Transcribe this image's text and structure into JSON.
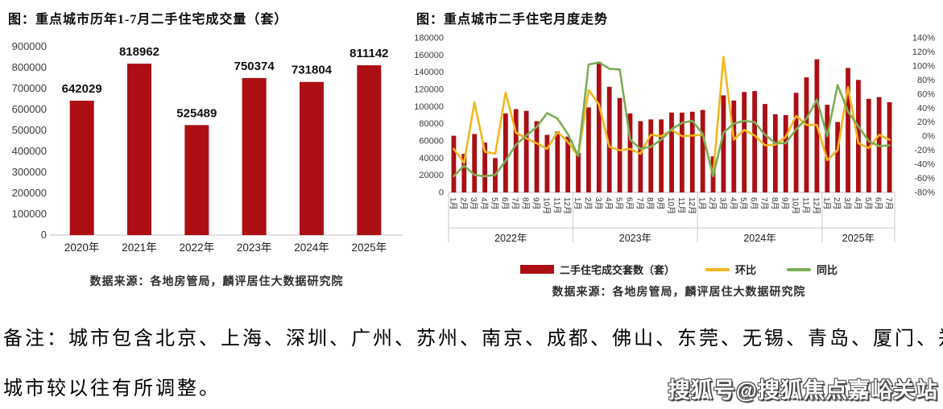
{
  "colors": {
    "bar_red": "#AB0F14",
    "line_yellow": "#F2B61E",
    "line_green": "#7BAE54",
    "axis_text": "#3a3a3a",
    "axis_line": "#c2c2c2",
    "separator": "#c9c9c9"
  },
  "chart_data": [
    {
      "id": "annual_bar",
      "type": "bar",
      "title": "图：重点城市历年1-7月二手住宅成交量（套）",
      "categories": [
        "2020年",
        "2021年",
        "2022年",
        "2023年",
        "2024年",
        "2025年"
      ],
      "values": [
        642029,
        818962,
        525489,
        750374,
        731804,
        811142
      ],
      "data_labels": [
        "642029",
        "818962",
        "525489",
        "750374",
        "731804",
        "811142"
      ],
      "ylim": [
        0,
        900000
      ],
      "ytick_step": 100000,
      "grid": false,
      "legend_position": "none",
      "source": "数据来源：各地房管局，麟评居住大数据研究院"
    },
    {
      "id": "monthly_combo",
      "type": "combo-bar-line",
      "title": "图：重点城市二手住宅月度走势",
      "year_groups": [
        {
          "label": "2022年",
          "months": 12
        },
        {
          "label": "2023年",
          "months": 12
        },
        {
          "label": "2024年",
          "months": 12
        },
        {
          "label": "2025年",
          "months": 7
        }
      ],
      "categories": [
        "1月",
        "2月",
        "3月",
        "4月",
        "5月",
        "6月",
        "7月",
        "8月",
        "9月",
        "10月",
        "11月",
        "12月",
        "1月",
        "2月",
        "3月",
        "4月",
        "5月",
        "6月",
        "7月",
        "8月",
        "9月",
        "10月",
        "11月",
        "12月",
        "1月",
        "2月",
        "3月",
        "4月",
        "5月",
        "6月",
        "7月",
        "8月",
        "9月",
        "10月",
        "11月",
        "12月",
        "1月",
        "2月",
        "3月",
        "4月",
        "5月",
        "6月",
        "7月"
      ],
      "series": [
        {
          "name": "二手住宅成交套数（套）",
          "type": "bar",
          "axis": "left",
          "values": [
            66000,
            45000,
            68000,
            58000,
            40000,
            92000,
            97000,
            95000,
            83000,
            67000,
            71000,
            65000,
            46000,
            99000,
            152000,
            123000,
            110000,
            92000,
            83000,
            85000,
            85000,
            93000,
            93000,
            94000,
            96000,
            42000,
            113000,
            107000,
            117000,
            118000,
            103000,
            91000,
            90000,
            116000,
            134000,
            155000,
            102000,
            82000,
            145000,
            131000,
            109000,
            111000,
            105000
          ]
        },
        {
          "name": "环比",
          "type": "line",
          "axis": "right",
          "values": [
            -18,
            -38,
            48,
            -22,
            -25,
            62,
            5,
            -3,
            -10,
            -18,
            6,
            -8,
            -28,
            66,
            45,
            -15,
            -20,
            -18,
            -25,
            2,
            0,
            9,
            0,
            1,
            2,
            -56,
            113,
            -5,
            9,
            1,
            -13,
            -12,
            -1,
            29,
            16,
            16,
            -34,
            -20,
            70,
            -10,
            -17,
            2,
            -5
          ]
        },
        {
          "name": "同比",
          "type": "line",
          "axis": "right",
          "values": [
            -57,
            -42,
            -55,
            -57,
            -55,
            -35,
            -12,
            1,
            13,
            33,
            25,
            3,
            -28,
            102,
            105,
            96,
            95,
            -5,
            -18,
            -15,
            -5,
            10,
            19,
            22,
            3,
            -57,
            5,
            18,
            22,
            20,
            2,
            -10,
            -10,
            10,
            25,
            52,
            0,
            73,
            35,
            14,
            -7,
            -14,
            -13
          ]
        }
      ],
      "left_axis": {
        "min": 0,
        "max": 180000,
        "step": 20000
      },
      "right_axis": {
        "min": -80,
        "max": 140,
        "step": 20,
        "suffix": "%"
      },
      "grid": false,
      "legend_position": "bottom",
      "source": "数据来源：各地房管局，麟评居住大数据研究院"
    }
  ],
  "note": {
    "line1": "备注：城市包含北京、上海、深圳、广州、苏州、南京、成都、佛山、东莞、无锡、青岛、厦门、郑州，",
    "line2": "城市较以往有所调整。"
  },
  "watermark": "搜狐号@搜狐焦点嘉峪关站"
}
